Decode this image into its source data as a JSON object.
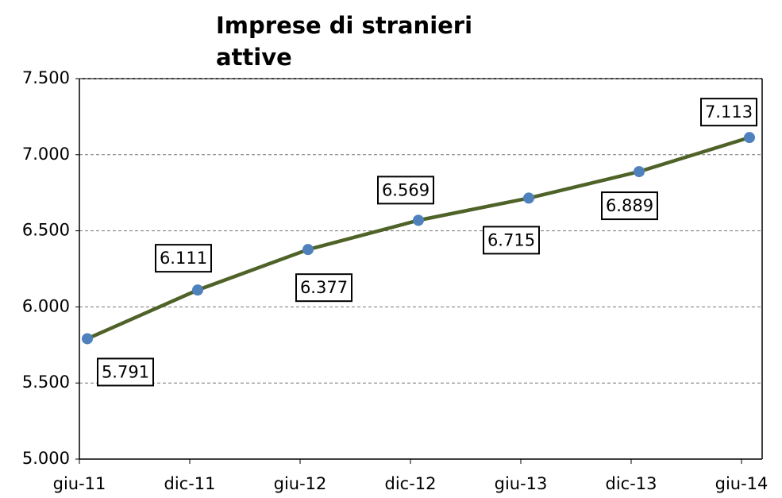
{
  "chart_data": {
    "type": "line",
    "title": "Imprese di stranieri attive",
    "categories": [
      "giu-11",
      "dic-11",
      "giu-12",
      "dic-12",
      "giu-13",
      "dic-13",
      "giu-14"
    ],
    "series": [
      {
        "color": "#4f6228",
        "marker_color": "#4f81bd",
        "values": [
          5791,
          6111,
          6377,
          6569,
          6715,
          6889,
          7113
        ],
        "value_labels": [
          "5.791",
          "6.111",
          "6.377",
          "6.569",
          "6.715",
          "6.889",
          "7.113"
        ]
      }
    ],
    "ylim": [
      5000,
      7500
    ],
    "yticks": [
      {
        "value": 5000,
        "label": "5.000"
      },
      {
        "value": 5500,
        "label": "5.500"
      },
      {
        "value": 6000,
        "label": "6.000"
      },
      {
        "value": 6500,
        "label": "6.500"
      },
      {
        "value": 7000,
        "label": "7.000"
      },
      {
        "value": 7500,
        "label": "7.500"
      }
    ],
    "grid": true
  }
}
